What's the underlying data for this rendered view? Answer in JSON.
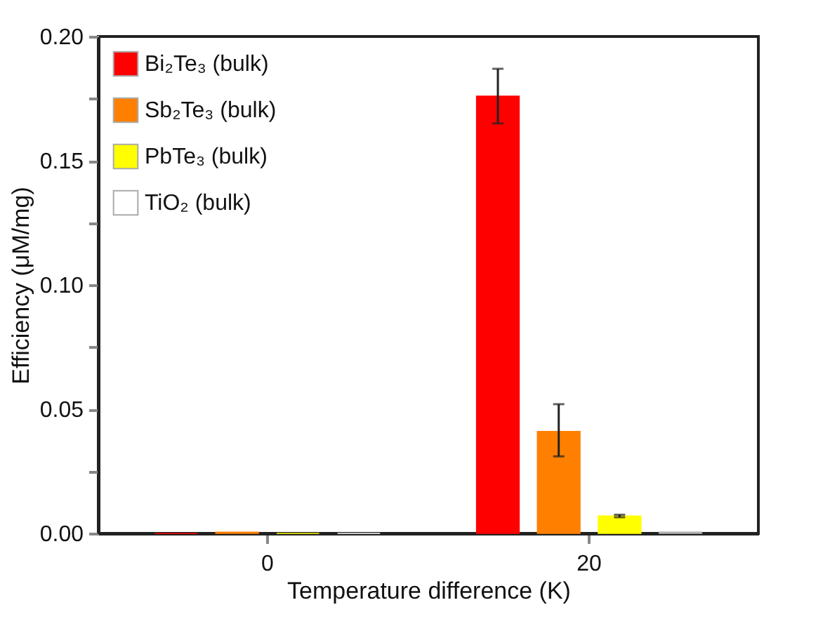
{
  "chart_data": {
    "type": "bar",
    "xlabel": "Temperature difference (K)",
    "ylabel": "Efficiency (μM/mg)",
    "categories": [
      "0",
      "20"
    ],
    "series": [
      {
        "name": "Bi₂Te₃ (bulk)",
        "color": "#ff0000",
        "values": [
          0,
          0.176
        ],
        "errors": [
          null,
          [
            0.165,
            0.187
          ]
        ]
      },
      {
        "name": "Sb₂Te₃ (bulk)",
        "color": "#ff8000",
        "values": [
          0.0005,
          0.041
        ],
        "errors": [
          null,
          [
            0.031,
            0.052
          ]
        ]
      },
      {
        "name": "PbTe₃ (bulk)",
        "color": "#ffff00",
        "values": [
          0,
          0.007
        ],
        "errors": [
          null,
          0.0005
        ]
      },
      {
        "name": "TiO₂ (bulk)",
        "color": "#ffffff",
        "values": [
          0,
          0.0005
        ],
        "errors": [
          null,
          null
        ]
      }
    ],
    "ylim": [
      0,
      0.2
    ],
    "yticks": [
      {
        "value": 0,
        "label": "0.00"
      },
      {
        "value": 0.025,
        "label": null
      },
      {
        "value": 0.05,
        "label": "0.05"
      },
      {
        "value": 0.075,
        "label": null
      },
      {
        "value": 0.1,
        "label": "0.10"
      },
      {
        "value": 0.125,
        "label": null
      },
      {
        "value": 0.15,
        "label": "0.15"
      },
      {
        "value": 0.175,
        "label": null
      },
      {
        "value": 0.2,
        "label": "0.20"
      }
    ],
    "grid": false,
    "legend": "top left"
  }
}
